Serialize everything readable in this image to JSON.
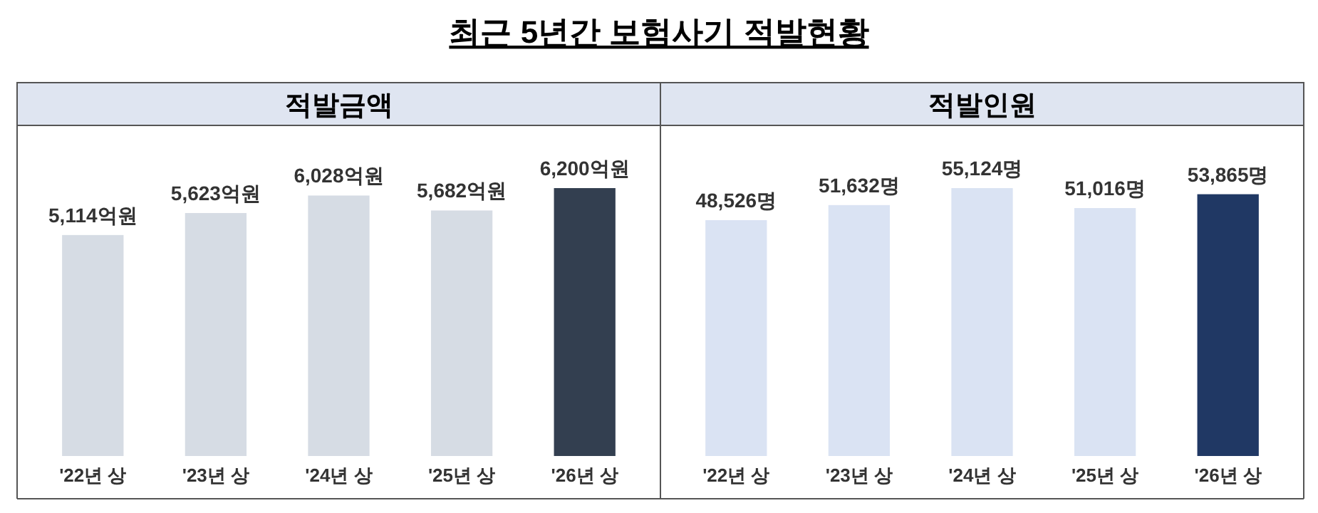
{
  "chart_data": [
    {
      "type": "bar",
      "title": "최근 5년간 보험사기 적발현황",
      "subtitle": "적발금액",
      "categories": [
        "'22년 상",
        "'23년 상",
        "'24년 상",
        "'25년 상",
        "'26년 상"
      ],
      "values": [
        5114,
        5623,
        6028,
        5682,
        6200
      ],
      "colors": [
        "#d6dce4",
        "#d6dce4",
        "#d6dce4",
        "#d6dce4",
        "#333f50"
      ],
      "value_labels": [
        "5,114억원",
        "5,623억원",
        "6,028억원",
        "5,682억원",
        "6,200억원"
      ]
    },
    {
      "type": "bar",
      "subtitle": "적발인원",
      "categories": [
        "'22년 상",
        "'23년 상",
        "'24년 상",
        "'25년 상",
        "'26년 상"
      ],
      "values": [
        48526,
        51632,
        55124,
        51016,
        53865
      ],
      "colors": [
        "#dae3f3",
        "#dae3f3",
        "#dae3f3",
        "#dae3f3",
        "#203864"
      ],
      "value_labels": [
        "48,526명",
        "51,632명",
        "55,124명",
        "51,016명",
        "53,865명"
      ]
    }
  ]
}
